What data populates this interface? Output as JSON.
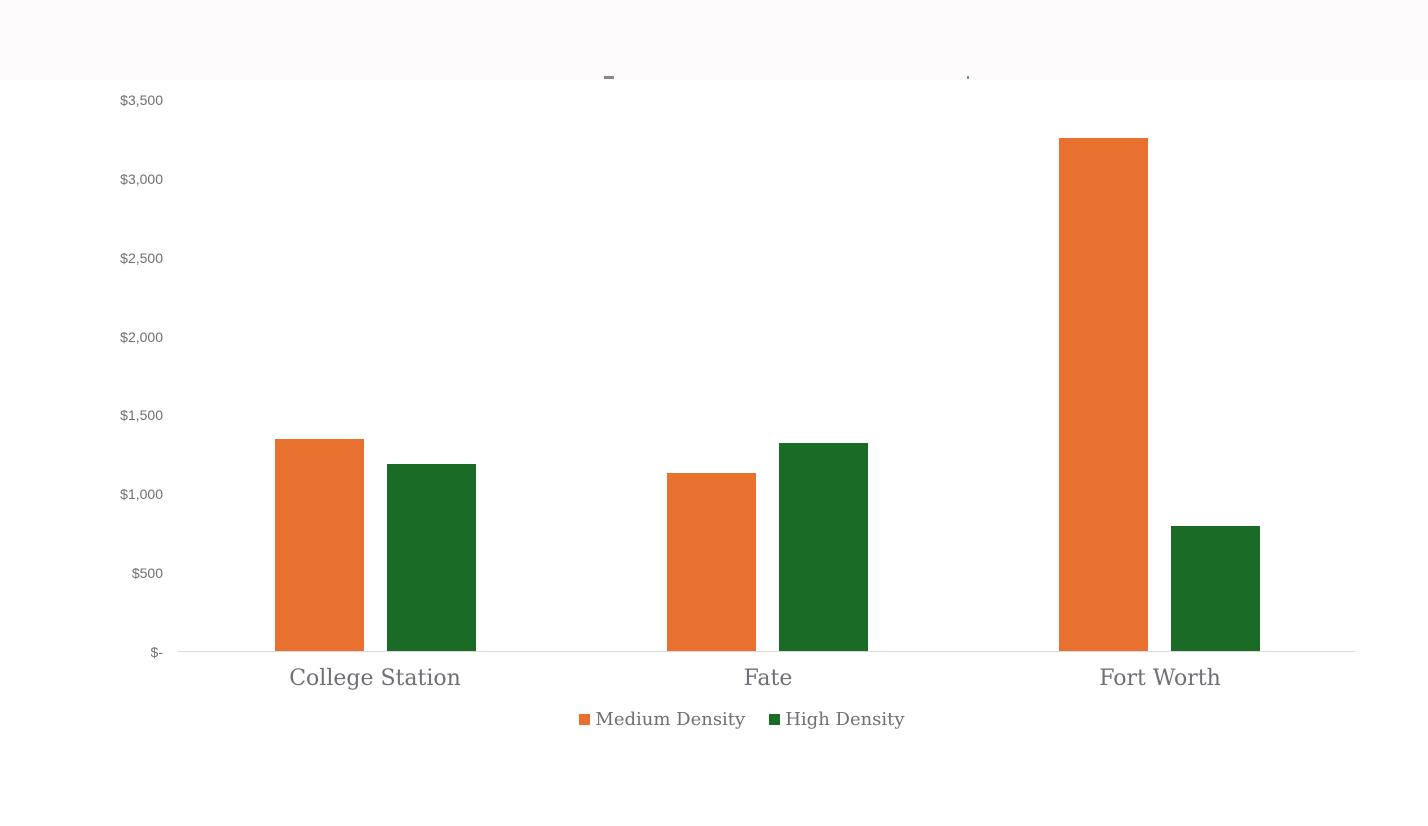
{
  "chart_data": {
    "type": "bar",
    "title": "",
    "xlabel": "",
    "ylabel": "",
    "categories": [
      "College Station",
      "Fate",
      "Fort Worth"
    ],
    "series": [
      {
        "name": "Medium Density",
        "color": "#e87130",
        "values": [
          1350,
          1135,
          3260
        ]
      },
      {
        "name": "High Density",
        "color": "#1a6b26",
        "values": [
          1190,
          1325,
          800
        ]
      }
    ],
    "ylim": [
      0,
      3500
    ],
    "yticks": [
      0,
      500,
      1000,
      1500,
      2000,
      2500,
      3000,
      3500
    ],
    "ytick_labels": [
      "$-",
      "$500",
      "$1,000",
      "$1,500",
      "$2,000",
      "$2,500",
      "$3,000",
      "$3,500"
    ],
    "grid": false,
    "legend_position": "bottom"
  },
  "axis": {
    "ticks": [
      "$3,500",
      "$3,000",
      "$2,500",
      "$2,000",
      "$1,500",
      "$1,000",
      "$500",
      "$-"
    ]
  },
  "categories": [
    "College Station",
    "Fate",
    "Fort Worth"
  ],
  "legend": {
    "items": [
      {
        "label": "Medium Density",
        "color": "#e87130"
      },
      {
        "label": "High Density",
        "color": "#1a6b26"
      }
    ]
  }
}
